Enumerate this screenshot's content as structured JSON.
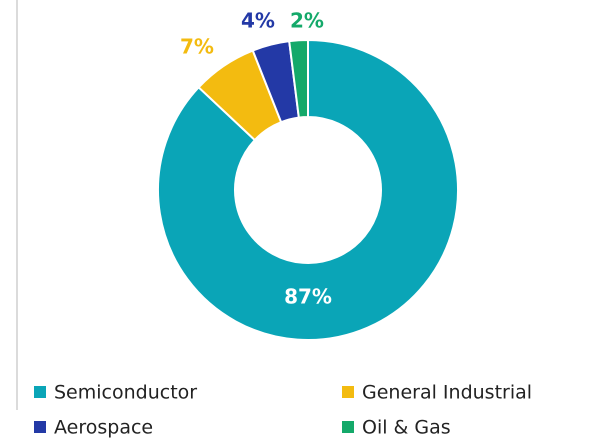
{
  "chart_data": {
    "type": "pie",
    "categories": [
      "Semiconductor",
      "General Industrial",
      "Aerospace",
      "Oil & Gas"
    ],
    "values": [
      87,
      7,
      4,
      2
    ],
    "value_labels": [
      "87%",
      "7%",
      "4%",
      "2%"
    ],
    "colors": [
      "#0aa5b7",
      "#f3bb10",
      "#2339a6",
      "#14a96a"
    ],
    "donut": true
  }
}
